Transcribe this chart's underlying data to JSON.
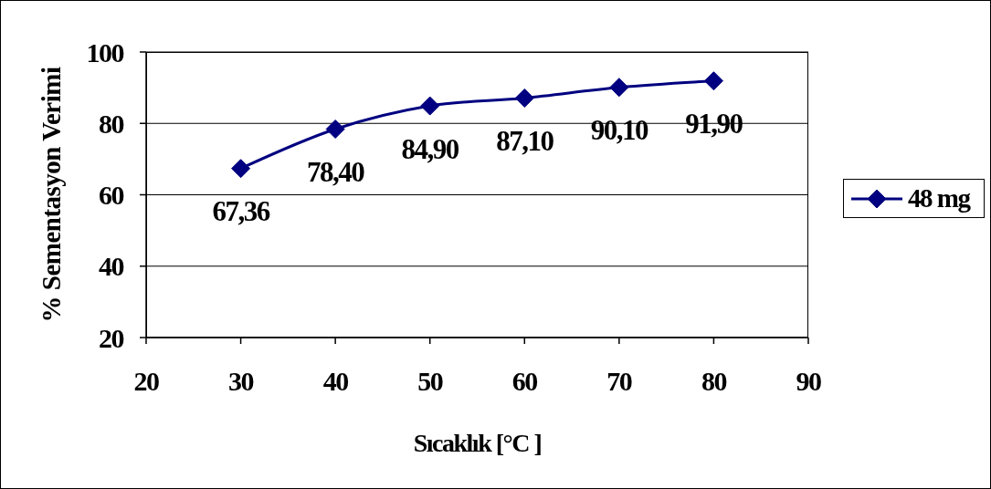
{
  "chart_data": {
    "type": "line",
    "xlabel": "Sıcaklık [°C ]",
    "ylabel": "% Sementasyon Verimi",
    "x": [
      30,
      40,
      50,
      60,
      70,
      80
    ],
    "series": [
      {
        "name": "48 mg",
        "color": "#000080",
        "values": [
          67.36,
          78.4,
          84.9,
          87.1,
          90.1,
          91.9
        ],
        "value_labels": [
          "67,36",
          "78,40",
          "84,90",
          "87,10",
          "90,10",
          "91,90"
        ]
      }
    ],
    "xlim": [
      20,
      90
    ],
    "xticks": [
      20,
      30,
      40,
      50,
      60,
      70,
      80,
      90
    ],
    "ylim": [
      20,
      100
    ],
    "yticks": [
      20,
      40,
      60,
      80,
      100
    ],
    "grid": "y",
    "legend": "right",
    "marker": "diamond",
    "line_style": "solid"
  }
}
